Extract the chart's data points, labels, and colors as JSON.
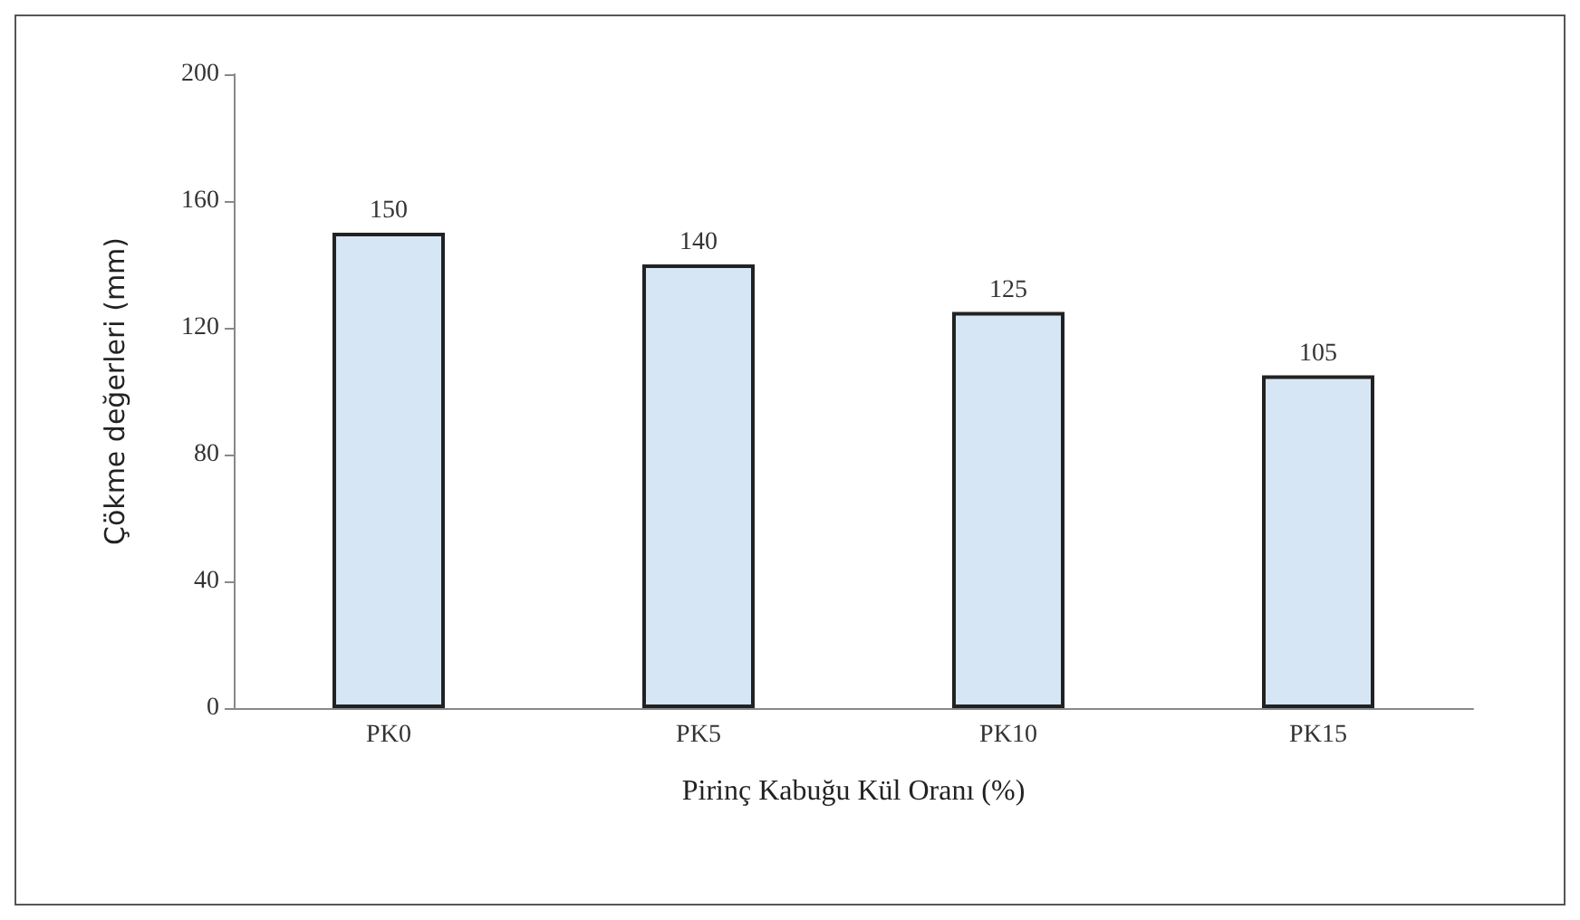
{
  "chart_data": {
    "type": "bar",
    "xlabel": "Pirinç Kabuğu Kül Oranı (%)",
    "ylabel": "Çökme değerleri (mm)",
    "categories": [
      "PK0",
      "PK5",
      "PK10",
      "PK15"
    ],
    "values": [
      150,
      140,
      125,
      105
    ],
    "color": "#d6e6f5",
    "ylim": [
      0,
      200
    ],
    "yticks": [
      0,
      40,
      80,
      120,
      160,
      200
    ],
    "grid": false,
    "data_labels": true
  }
}
